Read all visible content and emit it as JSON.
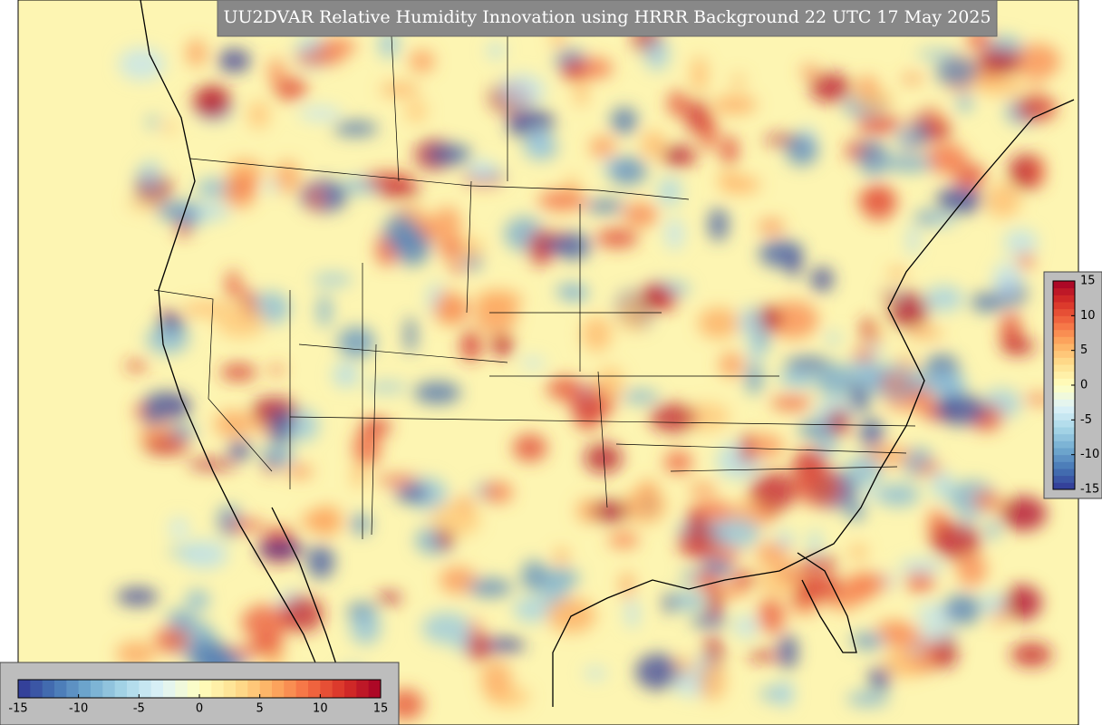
{
  "map": {
    "title": "UU2DVAR Relative Humidity Innovation using HRRR Background 22 UTC 17 May 2025",
    "colorbar_right": {
      "lim": [
        -15,
        15
      ],
      "ticks": [
        15,
        10,
        5,
        0,
        -5,
        -10,
        -15
      ]
    },
    "colorbar_bottom": {
      "lim": [
        -15,
        15
      ],
      "ticks": [
        -15,
        -10,
        -5,
        0,
        5,
        10,
        15
      ]
    }
  }
}
